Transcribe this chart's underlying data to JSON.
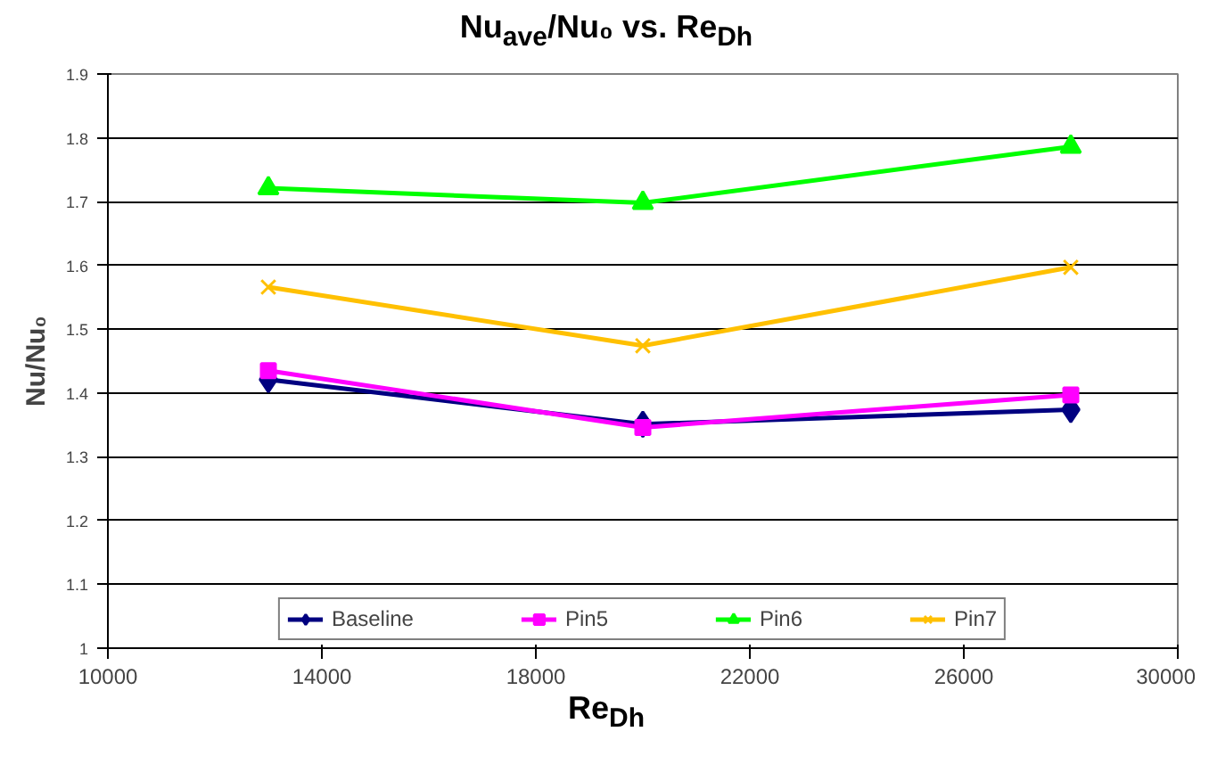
{
  "chart_data": {
    "type": "line",
    "title": "Nu$_{ave}$/Nu₀ vs. Re$_{Dh}$",
    "xlabel": "Re$_{Dh}$",
    "ylabel": "Nu/Nu₀",
    "x": [
      13000,
      20000,
      28000
    ],
    "series": [
      {
        "name": "Baseline",
        "color": "#000080",
        "marker": "diamond",
        "values": [
          1.421,
          1.351,
          1.374
        ]
      },
      {
        "name": "Pin5",
        "color": "#ff00ff",
        "marker": "square",
        "values": [
          1.435,
          1.346,
          1.397
        ]
      },
      {
        "name": "Pin6",
        "color": "#00ff00",
        "marker": "triangle",
        "values": [
          1.721,
          1.698,
          1.786
        ]
      },
      {
        "name": "Pin7",
        "color": "#ffc000",
        "marker": "cross",
        "values": [
          1.566,
          1.474,
          1.597
        ]
      }
    ],
    "xlim": [
      10000,
      30000
    ],
    "xticks": [
      10000,
      14000,
      18000,
      22000,
      26000,
      30000
    ],
    "ylim": [
      1,
      1.9
    ],
    "yticks": [
      1,
      1.1,
      1.2,
      1.3,
      1.4,
      1.5,
      1.6,
      1.7,
      1.8,
      1.9
    ],
    "grid": "y",
    "legend": "bottom",
    "line_style": "solid"
  }
}
